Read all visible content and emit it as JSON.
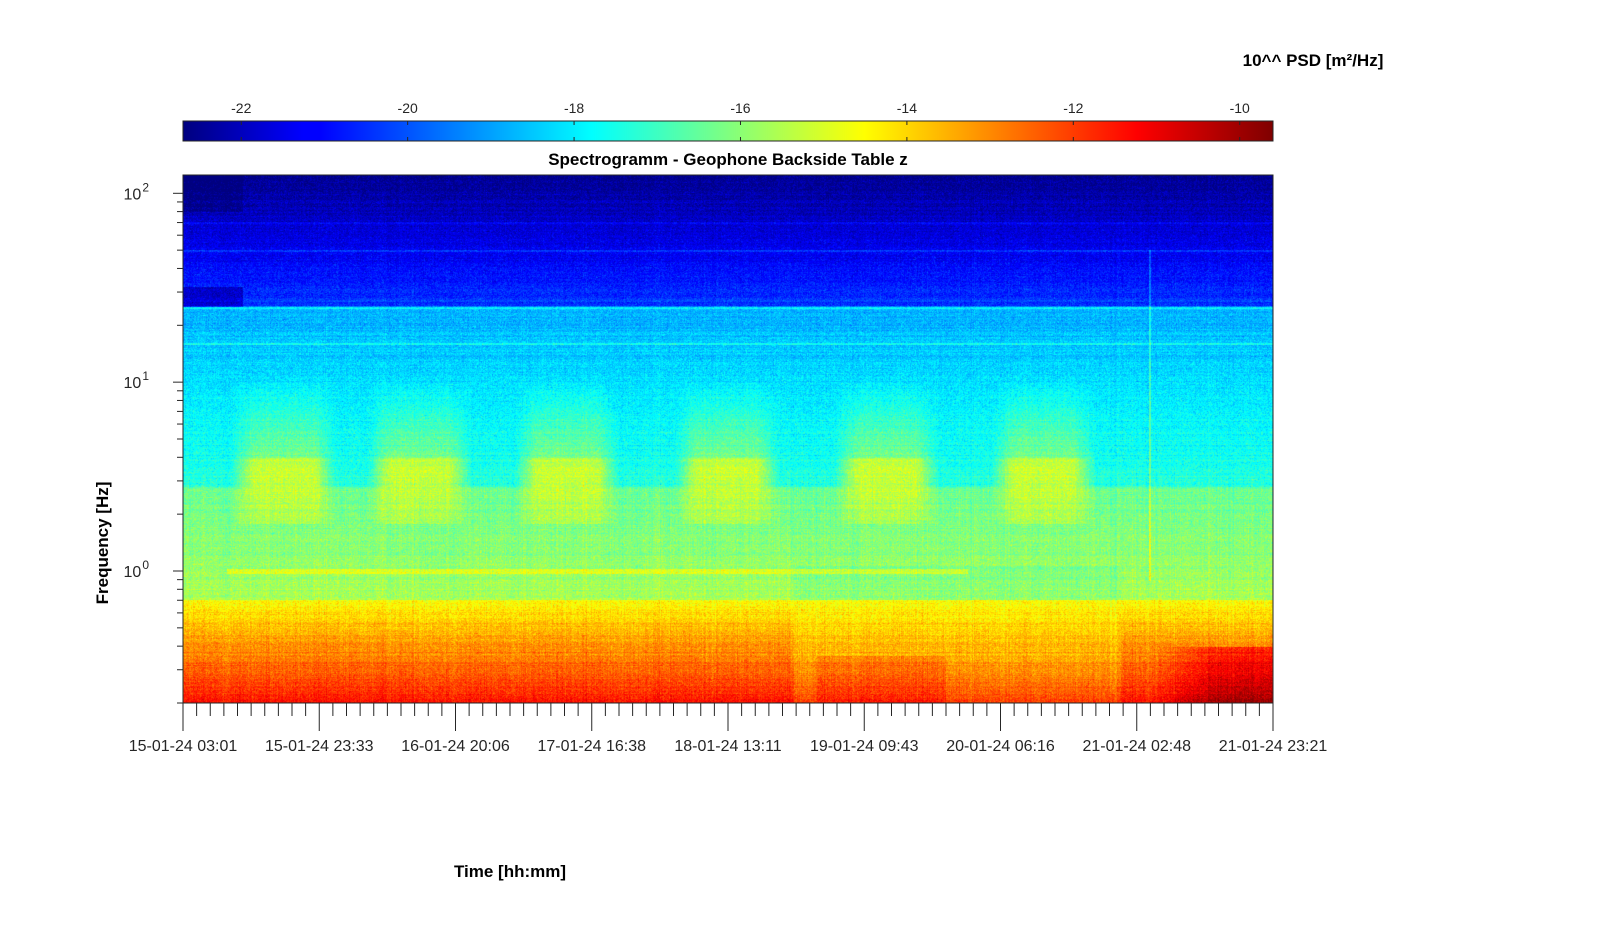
{
  "chart_data": {
    "type": "heatmap",
    "title": "Spectrogramm - Geophone Backside Table z",
    "xlabel": "Time [hh:mm]",
    "ylabel": "Frequency [Hz]",
    "y_scale": "log",
    "ylim": [
      0.2,
      125
    ],
    "x_tick_labels": [
      "15-01-24 03:01",
      "15-01-24 23:33",
      "16-01-24 20:06",
      "17-01-24 16:38",
      "18-01-24 13:11",
      "19-01-24 09:43",
      "20-01-24 06:16",
      "21-01-24 02:48",
      "21-01-24 23:21"
    ],
    "y_ticks": [
      {
        "base": "10",
        "exp": "0"
      },
      {
        "base": "10",
        "exp": "1"
      },
      {
        "base": "10",
        "exp": "2"
      }
    ],
    "colorbar": {
      "label": "10^^ PSD [m²/Hz]",
      "location": "top",
      "colormap": "jet",
      "range": [
        -22.7,
        -9.6
      ],
      "tick_labels": [
        "-22",
        "-20",
        "-18",
        "-16",
        "-14",
        "-12",
        "-10"
      ]
    },
    "grid": false,
    "activity_periods_center_times": [
      "15-01-24 10:00",
      "16-01-24 09:00",
      "17-01-24 09:30",
      "18-01-24 09:00",
      "19-01-24 09:00",
      "20-01-24 08:30"
    ],
    "features": {
      "broadband_activity_band_hz": [
        2,
        10
      ],
      "constant_line_hz": [
        1.0,
        16,
        25,
        50
      ],
      "spike_time": "21-01-24 02:50"
    }
  }
}
